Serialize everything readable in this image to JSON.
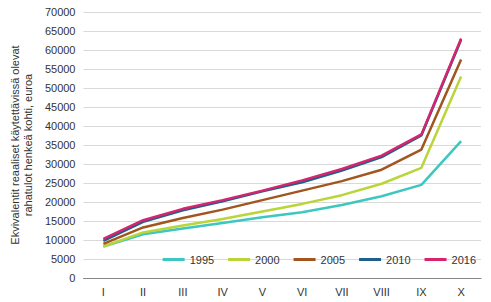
{
  "chart_data": {
    "type": "line",
    "y_label": "Ekvivalentit reaaliset käytettävissä olevat\nrahatulot henkeä kohti, euroa",
    "categories": [
      "I",
      "II",
      "III",
      "IV",
      "V",
      "VI",
      "VII",
      "VIII",
      "IX",
      "X"
    ],
    "series": [
      {
        "name": "1995",
        "color": "#3cc7c0",
        "values": [
          8300,
          11500,
          13000,
          14500,
          16000,
          17300,
          19200,
          21500,
          24500,
          36000
        ]
      },
      {
        "name": "2000",
        "color": "#b9d537",
        "values": [
          8300,
          12000,
          13800,
          15500,
          17500,
          19500,
          21800,
          24800,
          29000,
          53000
        ]
      },
      {
        "name": "2005",
        "color": "#a0561e",
        "values": [
          9000,
          13300,
          15800,
          18000,
          20500,
          23000,
          25500,
          28500,
          33800,
          57500
        ]
      },
      {
        "name": "2010",
        "color": "#1f5f8b",
        "values": [
          9800,
          14800,
          17800,
          20200,
          22800,
          25200,
          28300,
          31800,
          37500,
          62700
        ]
      },
      {
        "name": "2016",
        "color": "#d6246e",
        "values": [
          10300,
          15200,
          18200,
          20500,
          23000,
          25700,
          28700,
          32200,
          37800,
          63000
        ]
      }
    ],
    "ylim": [
      0,
      70000
    ],
    "yticks": [
      0,
      5000,
      10000,
      15000,
      20000,
      25000,
      30000,
      35000,
      40000,
      45000,
      50000,
      55000,
      60000,
      65000,
      70000
    ],
    "grid": true,
    "legend": "lower right"
  }
}
